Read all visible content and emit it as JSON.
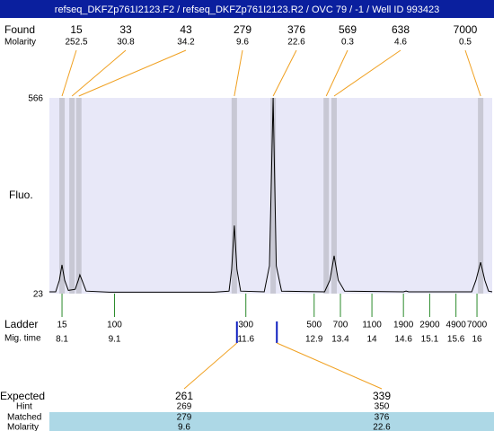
{
  "chart_data": {
    "type": "line",
    "title": "refseq_DKFZp761I2123.F2 / refseq_DKFZp761I2123.R2 / OVC 79 / -1 / Well ID 993423",
    "y_label": "Fluo.",
    "ylim": [
      23,
      566
    ],
    "yticks": [
      23,
      566
    ],
    "xlim": [
      7.86,
      16.29
    ],
    "color": "#000000",
    "x": [
      7.86,
      7.98,
      8.05,
      8.1,
      8.15,
      8.22,
      8.35,
      8.41,
      8.44,
      8.48,
      8.56,
      9.0,
      10.0,
      11.0,
      11.28,
      11.33,
      11.38,
      11.43,
      11.5,
      11.95,
      12.05,
      12.12,
      12.18,
      12.28,
      13.1,
      13.2,
      13.28,
      13.36,
      13.48,
      14.6,
      14.65,
      14.7,
      15.9,
      15.98,
      16.07,
      16.15,
      16.22,
      16.29
    ],
    "values": [
      28,
      28,
      60,
      103,
      60,
      32,
      35,
      60,
      75,
      60,
      30,
      27,
      27,
      27,
      30,
      90,
      212,
      90,
      30,
      28,
      100,
      566,
      100,
      30,
      28,
      60,
      128,
      60,
      30,
      28,
      30,
      28,
      28,
      60,
      110,
      60,
      30,
      28
    ],
    "found": {
      "label": "Found",
      "molarity_label": "Molarity",
      "sizes": [
        15,
        33,
        43,
        279,
        376,
        569,
        638,
        7000
      ],
      "molarities": [
        252.5,
        30.8,
        34.2,
        9.6,
        22.6,
        0.3,
        4.6,
        0.5
      ],
      "times": [
        8.1,
        8.29,
        8.42,
        11.38,
        12.12,
        13.13,
        13.28,
        16.07
      ]
    },
    "ladder": {
      "label": "Ladder",
      "time_label": "Mig. time",
      "sizes": [
        15,
        100,
        300,
        500,
        700,
        1100,
        1900,
        2900,
        4900,
        7000
      ],
      "times": [
        8.1,
        9.1,
        11.6,
        12.9,
        13.4,
        14,
        14.6,
        15.1,
        15.6,
        16
      ]
    },
    "expected": {
      "label": "Expected",
      "hint_label": "Hint",
      "matched_label": "Matched",
      "molarity_label": "Molarity",
      "sizes": [
        261,
        339
      ],
      "hints": [
        269,
        350
      ],
      "matched": [
        279,
        376
      ],
      "molarities": [
        9.6,
        22.6
      ],
      "times": [
        11.43,
        12.19
      ]
    }
  }
}
